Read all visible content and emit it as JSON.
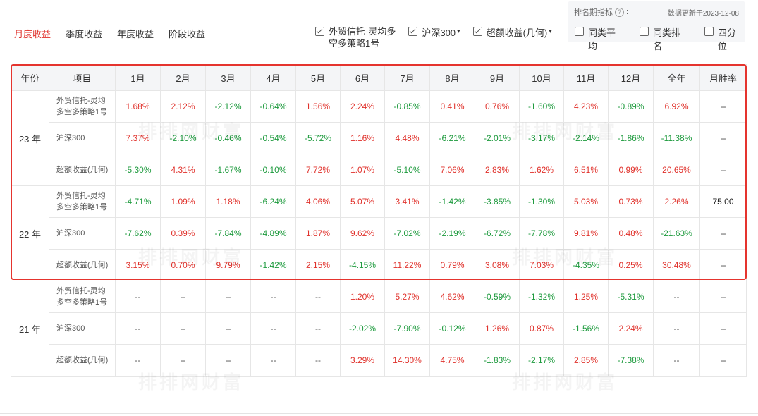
{
  "tabs": [
    {
      "label": "月度收益",
      "active": true
    },
    {
      "label": "季度收益",
      "active": false
    },
    {
      "label": "年度收益",
      "active": false
    },
    {
      "label": "阶段收益",
      "active": false
    }
  ],
  "filters": {
    "fund": {
      "label_line1": "外贸信托-灵均多",
      "label_line2": "空多策略1号",
      "checked": true
    },
    "index": {
      "label": "沪深300",
      "caret": "▾",
      "checked": true
    },
    "excess": {
      "label": "超额收益(几何)",
      "caret": "▾",
      "checked": true
    }
  },
  "rank_panel": {
    "title": "排名期指标",
    "help_icon": "?",
    "colon": ":",
    "update_text": "数据更新于2023-12-08",
    "options": [
      {
        "label": "同类平均",
        "checked": false
      },
      {
        "label": "同类排名",
        "checked": false
      },
      {
        "label": "四分位",
        "checked": false
      }
    ]
  },
  "table": {
    "headers": [
      "年份",
      "项目",
      "1月",
      "2月",
      "3月",
      "4月",
      "5月",
      "6月",
      "7月",
      "8月",
      "9月",
      "10月",
      "11月",
      "12月",
      "全年",
      "月胜率"
    ],
    "groups": [
      {
        "year": "23 年",
        "rows": [
          {
            "item_line1": "外贸信托-灵均",
            "item_line2": "多空多策略1号",
            "values": [
              "1.68%",
              "2.12%",
              "-2.12%",
              "-0.64%",
              "1.56%",
              "2.24%",
              "-0.85%",
              "0.41%",
              "0.76%",
              "-1.60%",
              "4.23%",
              "-0.89%",
              "6.92%",
              "--"
            ]
          },
          {
            "item_line1": "沪深300",
            "item_line2": "",
            "values": [
              "7.37%",
              "-2.10%",
              "-0.46%",
              "-0.54%",
              "-5.72%",
              "1.16%",
              "4.48%",
              "-6.21%",
              "-2.01%",
              "-3.17%",
              "-2.14%",
              "-1.86%",
              "-11.38%",
              "--"
            ]
          },
          {
            "item_line1": "超额收益(几何)",
            "item_line2": "",
            "values": [
              "-5.30%",
              "4.31%",
              "-1.67%",
              "-0.10%",
              "7.72%",
              "1.07%",
              "-5.10%",
              "7.06%",
              "2.83%",
              "1.62%",
              "6.51%",
              "0.99%",
              "20.65%",
              "--"
            ]
          }
        ]
      },
      {
        "year": "22 年",
        "rows": [
          {
            "item_line1": "外贸信托-灵均",
            "item_line2": "多空多策略1号",
            "values": [
              "-4.71%",
              "1.09%",
              "1.18%",
              "-6.24%",
              "4.06%",
              "5.07%",
              "3.41%",
              "-1.42%",
              "-3.85%",
              "-1.30%",
              "5.03%",
              "0.73%",
              "2.26%",
              "75.00"
            ]
          },
          {
            "item_line1": "沪深300",
            "item_line2": "",
            "values": [
              "-7.62%",
              "0.39%",
              "-7.84%",
              "-4.89%",
              "1.87%",
              "9.62%",
              "-7.02%",
              "-2.19%",
              "-6.72%",
              "-7.78%",
              "9.81%",
              "0.48%",
              "-21.63%",
              "--"
            ]
          },
          {
            "item_line1": "超额收益(几何)",
            "item_line2": "",
            "values": [
              "3.15%",
              "0.70%",
              "9.79%",
              "-1.42%",
              "2.15%",
              "-4.15%",
              "11.22%",
              "0.79%",
              "3.08%",
              "7.03%",
              "-4.35%",
              "0.25%",
              "30.48%",
              "--"
            ]
          }
        ]
      },
      {
        "year": "21 年",
        "rows": [
          {
            "item_line1": "外贸信托-灵均",
            "item_line2": "多空多策略1号",
            "values": [
              "--",
              "--",
              "--",
              "--",
              "--",
              "1.20%",
              "5.27%",
              "4.62%",
              "-0.59%",
              "-1.32%",
              "1.25%",
              "-5.31%",
              "--",
              "--"
            ]
          },
          {
            "item_line1": "沪深300",
            "item_line2": "",
            "values": [
              "--",
              "--",
              "--",
              "--",
              "--",
              "-2.02%",
              "-7.90%",
              "-0.12%",
              "1.26%",
              "0.87%",
              "-1.56%",
              "2.24%",
              "--",
              "--"
            ]
          },
          {
            "item_line1": "超额收益(几何)",
            "item_line2": "",
            "values": [
              "--",
              "--",
              "--",
              "--",
              "--",
              "3.29%",
              "14.30%",
              "4.75%",
              "-1.83%",
              "-2.17%",
              "2.85%",
              "-7.38%",
              "--",
              "--"
            ]
          }
        ]
      }
    ]
  },
  "watermark": "排排网财富",
  "colors": {
    "positive": "#e0302a",
    "negative": "#1d9a3d",
    "highlight": "#e5342e",
    "active_tab": "#e0302a"
  }
}
